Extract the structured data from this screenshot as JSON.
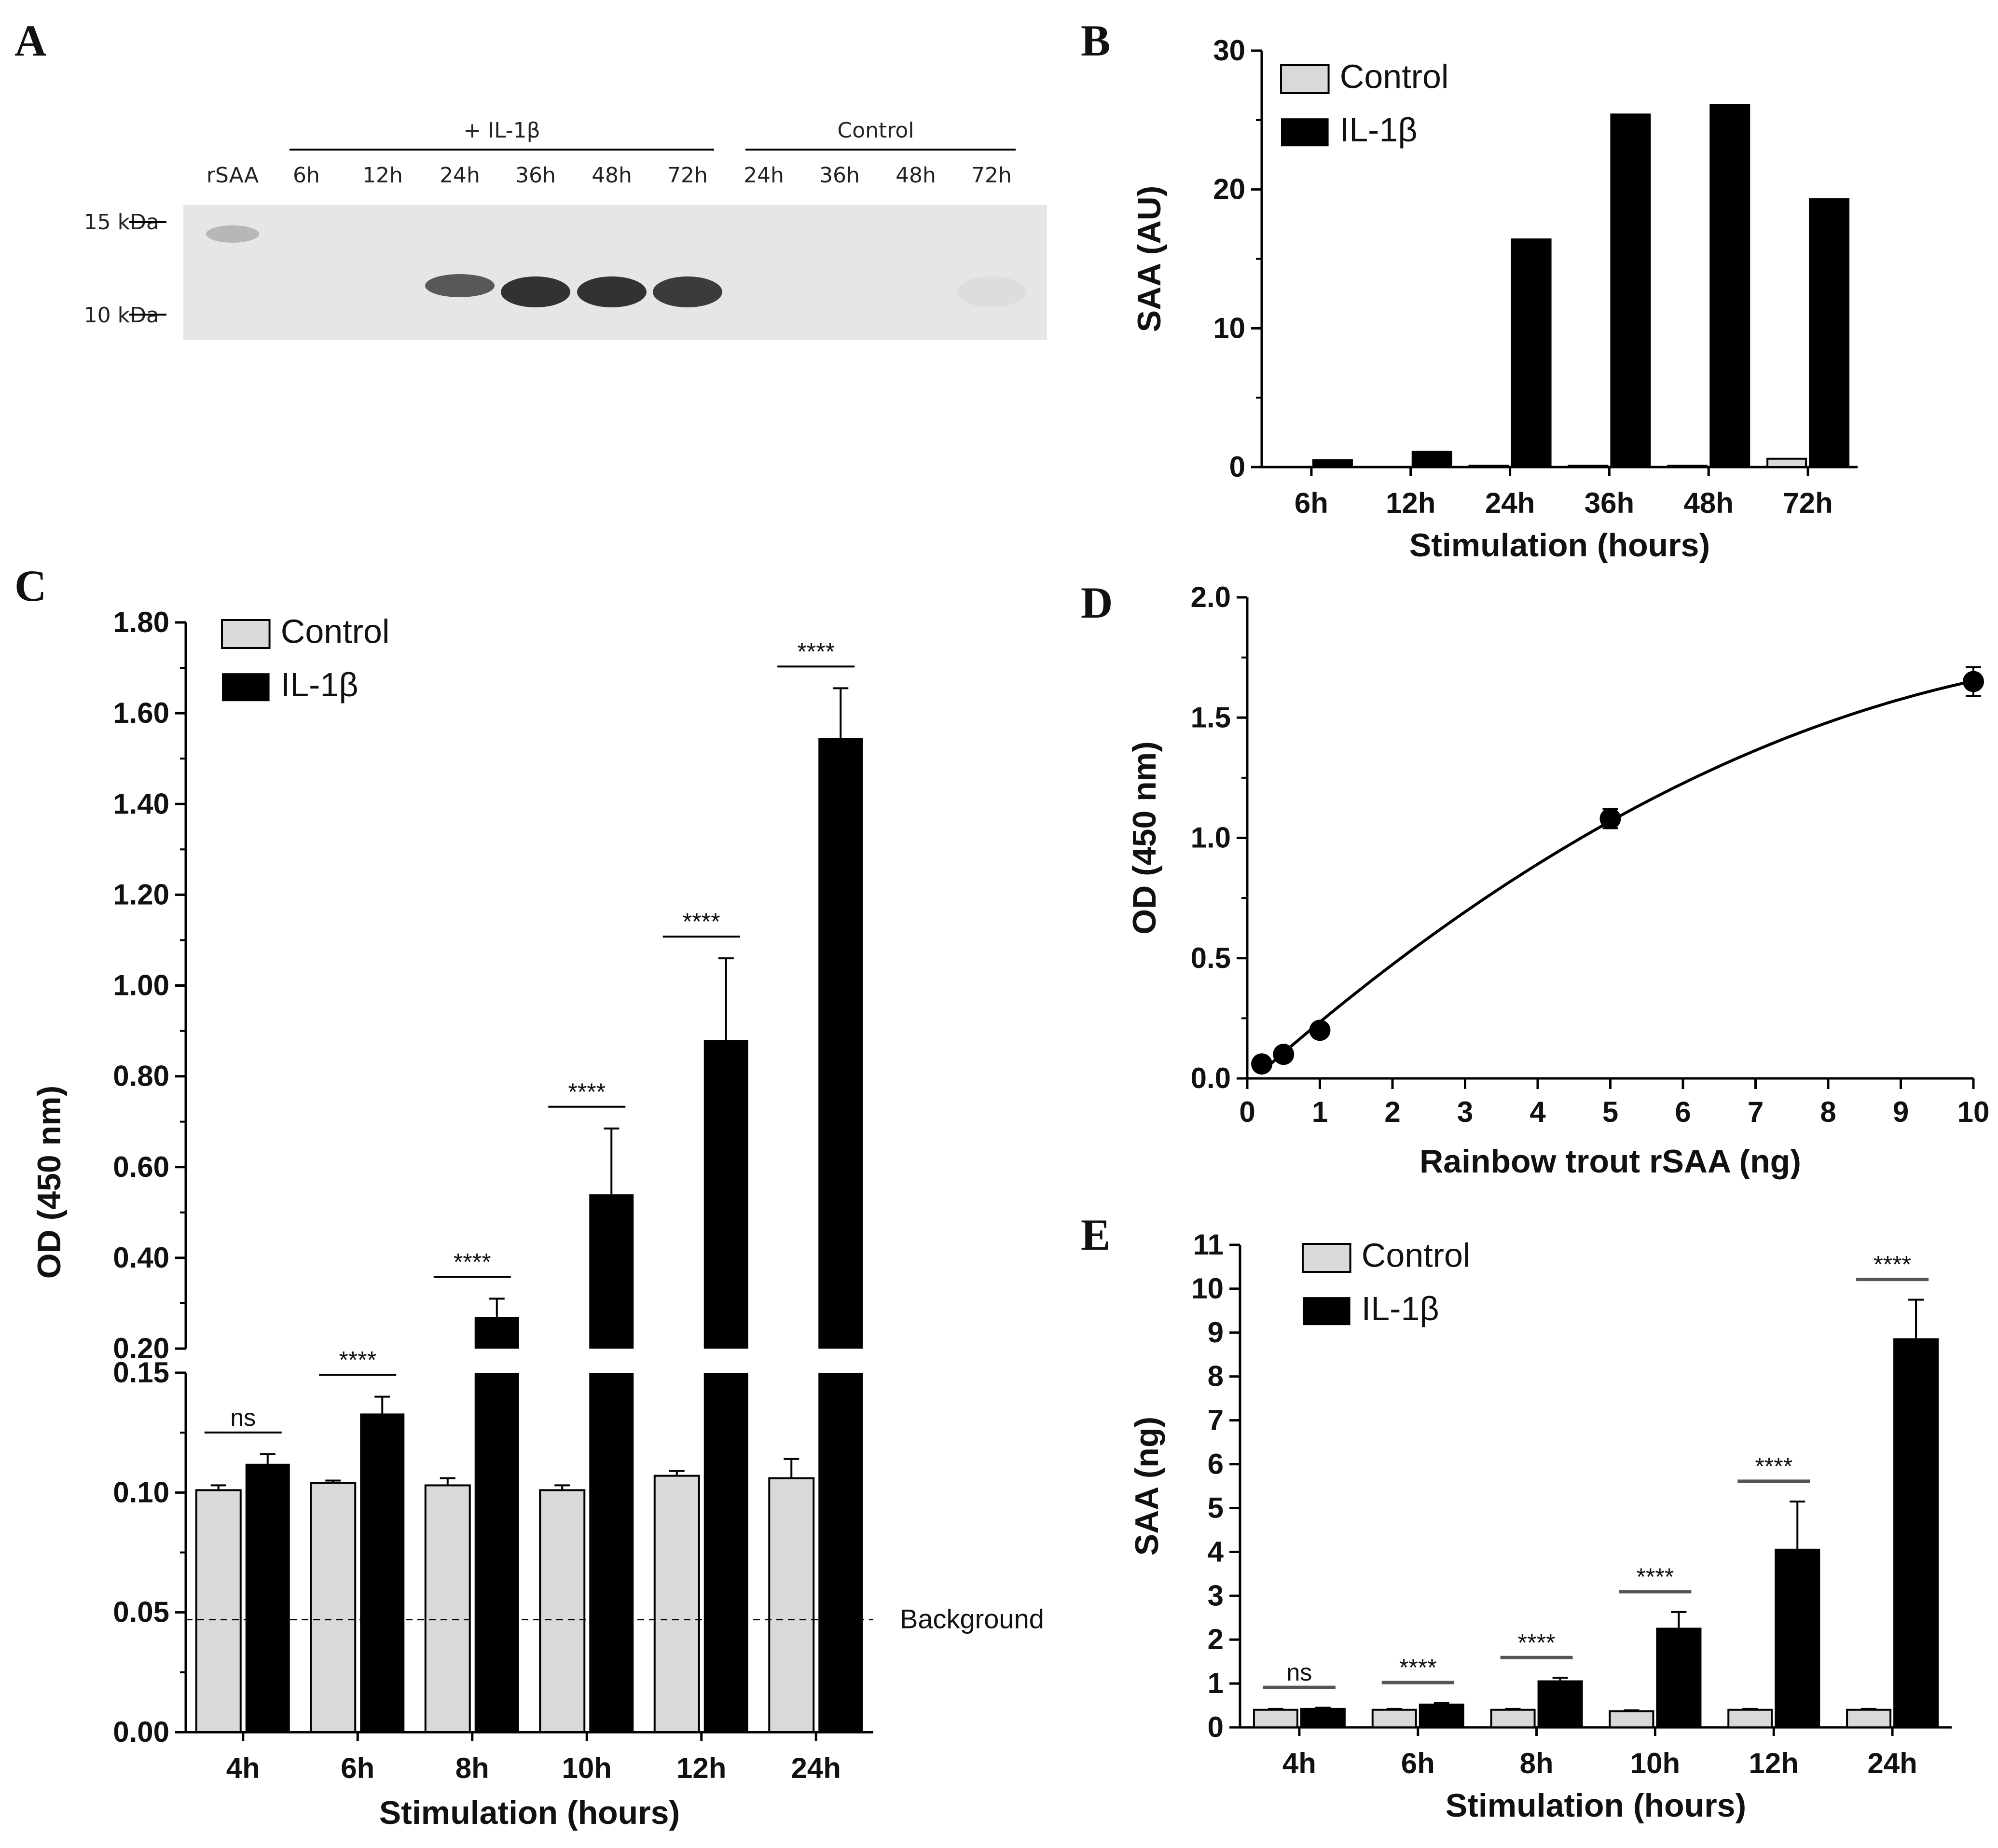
{
  "colors": {
    "control": "#d9d9d9",
    "il1b": "#000000",
    "axis": "#000000"
  },
  "panels": {
    "A": "A",
    "B": "B",
    "C": "C",
    "D": "D",
    "E": "E"
  },
  "blot": {
    "group_il1b": "+ IL-1β",
    "group_control": "Control",
    "lanes": [
      "rSAA",
      "6h",
      "12h",
      "24h",
      "36h",
      "48h",
      "72h",
      "24h",
      "36h",
      "48h",
      "72h"
    ],
    "marker_15": "15 kDa",
    "marker_10": "10 kDa",
    "band_intensity": [
      0.25,
      0,
      0,
      0.75,
      0.95,
      0.95,
      0.9,
      0,
      0,
      0,
      0.05
    ]
  },
  "legend": {
    "control": "Control",
    "il1b": "IL-1β"
  },
  "background_label": "Background",
  "chart_data": [
    {
      "id": "B",
      "type": "bar",
      "categories": [
        "6h",
        "12h",
        "24h",
        "36h",
        "48h",
        "72h"
      ],
      "series": [
        {
          "name": "Control",
          "values": [
            0,
            0,
            0.1,
            0.1,
            0.1,
            0.6
          ]
        },
        {
          "name": "IL-1β",
          "values": [
            0.5,
            1.1,
            16.4,
            25.4,
            26.1,
            19.3
          ]
        }
      ],
      "xlabel": "Stimulation (hours)",
      "ylabel": "SAA (AU)",
      "ylim": [
        0,
        30
      ],
      "yticks": [
        "0",
        "10",
        "20",
        "30"
      ],
      "legend": "top-left"
    },
    {
      "id": "C",
      "type": "bar",
      "categories": [
        "4h",
        "6h",
        "8h",
        "10h",
        "12h",
        "24h"
      ],
      "series": [
        {
          "name": "Control",
          "values": [
            0.101,
            0.104,
            0.103,
            0.101,
            0.107,
            0.106
          ],
          "errors": [
            0.002,
            0.001,
            0.003,
            0.002,
            0.002,
            0.008
          ]
        },
        {
          "name": "IL-1β",
          "values": [
            0.112,
            0.133,
            0.27,
            0.54,
            0.88,
            1.545
          ],
          "errors": [
            0.004,
            0.007,
            0.04,
            0.145,
            0.18,
            0.11
          ]
        }
      ],
      "significance": [
        "ns",
        "****",
        "****",
        "****",
        "****",
        "****"
      ],
      "xlabel": "Stimulation (hours)",
      "ylabel": "OD (450 nm)",
      "broken_axis": {
        "lower": [
          0,
          0.15
        ],
        "upper": [
          0.2,
          1.8
        ]
      },
      "yticks_lower": [
        "0.00",
        "0.05",
        "0.10",
        "0.15"
      ],
      "yticks_upper": [
        "0.20",
        "0.40",
        "0.60",
        "0.80",
        "1.00",
        "1.20",
        "1.40",
        "1.60",
        "1.80"
      ],
      "background_value": 0.047,
      "legend": "top-left"
    },
    {
      "id": "D",
      "type": "scatter",
      "x": [
        0.2,
        0.5,
        1,
        5,
        10
      ],
      "y": [
        0.06,
        0.1,
        0.2,
        1.08,
        1.65
      ],
      "errors": [
        0.01,
        0.01,
        0.015,
        0.04,
        0.06
      ],
      "fit": "quadratic",
      "xlabel": "Rainbow trout rSAA (ng)",
      "ylabel": "OD (450 nm)",
      "xlim": [
        0,
        10
      ],
      "ylim": [
        0,
        2
      ],
      "xticks": [
        "0",
        "1",
        "2",
        "3",
        "4",
        "5",
        "6",
        "7",
        "8",
        "9",
        "10"
      ],
      "yticks": [
        "0.0",
        "0.5",
        "1.0",
        "1.5",
        "2.0"
      ]
    },
    {
      "id": "E",
      "type": "bar",
      "categories": [
        "4h",
        "6h",
        "8h",
        "10h",
        "12h",
        "24h"
      ],
      "series": [
        {
          "name": "Control",
          "values": [
            0.4,
            0.4,
            0.4,
            0.37,
            0.4,
            0.4
          ],
          "errors": [
            0.02,
            0.02,
            0.02,
            0.02,
            0.02,
            0.02
          ]
        },
        {
          "name": "IL-1β",
          "values": [
            0.42,
            0.52,
            1.05,
            2.25,
            4.05,
            8.85
          ],
          "errors": [
            0.03,
            0.04,
            0.08,
            0.38,
            1.1,
            0.9
          ]
        }
      ],
      "significance": [
        "ns",
        "****",
        "****",
        "****",
        "****",
        "****"
      ],
      "xlabel": "Stimulation (hours)",
      "ylabel": "SAA (ng)",
      "ylim": [
        0,
        11
      ],
      "yticks": [
        "0",
        "1",
        "2",
        "3",
        "4",
        "5",
        "6",
        "7",
        "8",
        "9",
        "10",
        "11"
      ],
      "legend": "top-left"
    }
  ]
}
